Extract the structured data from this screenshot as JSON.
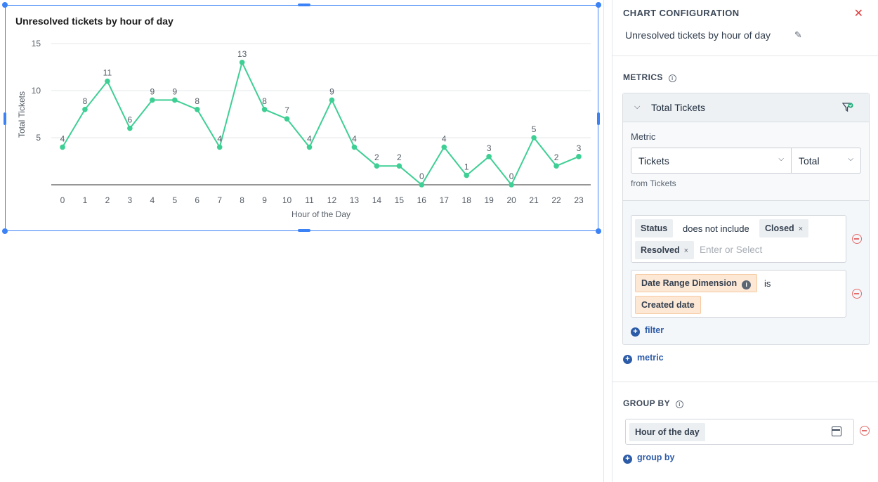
{
  "chart": {
    "title": "Unresolved tickets by hour of day",
    "accent_color": "#3ecf94"
  },
  "chart_data": {
    "type": "line",
    "title": "Unresolved tickets by hour of day",
    "xlabel": "Hour of the Day",
    "ylabel": "Total Tickets",
    "x": [
      "0",
      "1",
      "2",
      "3",
      "4",
      "5",
      "6",
      "7",
      "8",
      "9",
      "10",
      "11",
      "12",
      "13",
      "14",
      "15",
      "16",
      "17",
      "18",
      "19",
      "20",
      "21",
      "22",
      "23"
    ],
    "series": [
      {
        "values": [
          4,
          8,
          11,
          6,
          9,
          9,
          8,
          4,
          13,
          8,
          7,
          4,
          9,
          4,
          2,
          2,
          0,
          4,
          1,
          3,
          0,
          5,
          2,
          3
        ]
      }
    ],
    "yticks": [
      "5",
      "10",
      "15"
    ],
    "ylim": [
      0,
      15
    ],
    "grid": true,
    "data_labels": true
  },
  "panel": {
    "header": "CHART CONFIGURATION",
    "chart_name": "Unresolved tickets by hour of day",
    "metrics_title": "METRICS",
    "metric": {
      "name": "Total Tickets",
      "metric_label": "Metric",
      "metric_value": "Tickets",
      "aggregation": "Total",
      "from_label": "from Tickets"
    },
    "filter1": {
      "field": "Status",
      "operator": "does not include",
      "values": [
        "Closed",
        "Resolved"
      ],
      "placeholder": "Enter or Select"
    },
    "filter2": {
      "field": "Date Range Dimension",
      "operator": "is",
      "value": "Created date"
    },
    "add_filter": "filter",
    "add_metric": "metric",
    "groupby_title": "GROUP BY",
    "groupby_value": "Hour of the day",
    "add_groupby": "group by"
  }
}
